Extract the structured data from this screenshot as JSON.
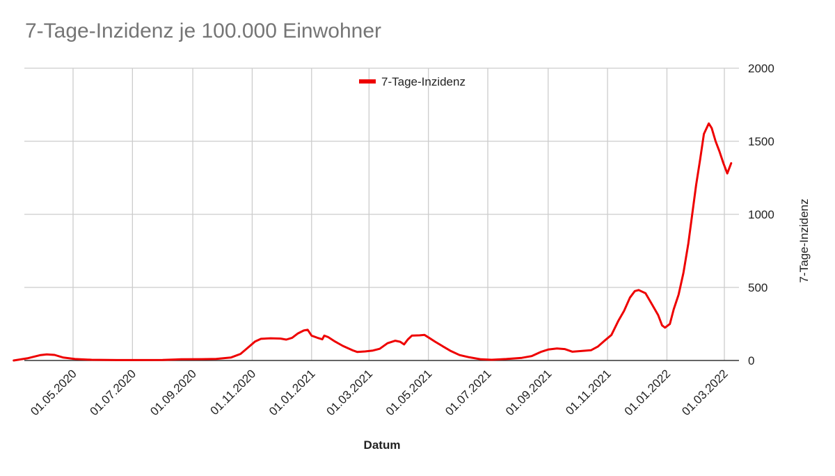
{
  "chart_data": {
    "type": "line",
    "title": "7-Tage-Inzidenz je 100.000 Einwohner",
    "xlabel": "Datum",
    "ylabel": "7-Tage-Inzidenz",
    "ylim": [
      0,
      2000
    ],
    "yticks": [
      "0",
      "500",
      "1000",
      "1500",
      "2000"
    ],
    "xlim": [
      "2020-03-01",
      "2022-03-31"
    ],
    "xticks": [
      {
        "date": "2020-05-01",
        "label": "01.05.2020"
      },
      {
        "date": "2020-07-01",
        "label": "01.07.2020"
      },
      {
        "date": "2020-09-01",
        "label": "01.09.2020"
      },
      {
        "date": "2020-11-01",
        "label": "01.11.2020"
      },
      {
        "date": "2021-01-01",
        "label": "01.01.2021"
      },
      {
        "date": "2021-03-01",
        "label": "01.03.2021"
      },
      {
        "date": "2021-05-01",
        "label": "01.05.2021"
      },
      {
        "date": "2021-07-01",
        "label": "01.07.2021"
      },
      {
        "date": "2021-09-01",
        "label": "01.09.2021"
      },
      {
        "date": "2021-11-01",
        "label": "01.11.2021"
      },
      {
        "date": "2022-01-01",
        "label": "01.01.2022"
      },
      {
        "date": "2022-03-01",
        "label": "01.03.2022"
      }
    ],
    "grid": true,
    "legend_position": "top",
    "series": [
      {
        "name": "7-Tage-Inzidenz",
        "color": "#ee0000",
        "points": [
          [
            "2020-03-01",
            0
          ],
          [
            "2020-03-15",
            15
          ],
          [
            "2020-03-28",
            36
          ],
          [
            "2020-04-04",
            42
          ],
          [
            "2020-04-12",
            38
          ],
          [
            "2020-04-21",
            20
          ],
          [
            "2020-05-03",
            10
          ],
          [
            "2020-05-20",
            5
          ],
          [
            "2020-06-15",
            3
          ],
          [
            "2020-07-01",
            3
          ],
          [
            "2020-08-01",
            4
          ],
          [
            "2020-08-20",
            8
          ],
          [
            "2020-09-10",
            9
          ],
          [
            "2020-09-25",
            11
          ],
          [
            "2020-10-10",
            20
          ],
          [
            "2020-10-20",
            45
          ],
          [
            "2020-10-28",
            90
          ],
          [
            "2020-11-04",
            130
          ],
          [
            "2020-11-10",
            148
          ],
          [
            "2020-11-20",
            152
          ],
          [
            "2020-11-30",
            150
          ],
          [
            "2020-12-06",
            143
          ],
          [
            "2020-12-12",
            155
          ],
          [
            "2020-12-18",
            185
          ],
          [
            "2020-12-24",
            205
          ],
          [
            "2020-12-28",
            210
          ],
          [
            "2021-01-01",
            170
          ],
          [
            "2021-01-07",
            155
          ],
          [
            "2021-01-12",
            145
          ],
          [
            "2021-01-14",
            170
          ],
          [
            "2021-01-18",
            160
          ],
          [
            "2021-01-25",
            130
          ],
          [
            "2021-02-02",
            100
          ],
          [
            "2021-02-12",
            70
          ],
          [
            "2021-02-17",
            58
          ],
          [
            "2021-02-25",
            62
          ],
          [
            "2021-03-05",
            68
          ],
          [
            "2021-03-12",
            80
          ],
          [
            "2021-03-20",
            118
          ],
          [
            "2021-03-28",
            135
          ],
          [
            "2021-04-02",
            128
          ],
          [
            "2021-04-06",
            110
          ],
          [
            "2021-04-10",
            145
          ],
          [
            "2021-04-14",
            170
          ],
          [
            "2021-04-22",
            172
          ],
          [
            "2021-04-27",
            175
          ],
          [
            "2021-05-01",
            158
          ],
          [
            "2021-05-08",
            128
          ],
          [
            "2021-05-15",
            100
          ],
          [
            "2021-05-24",
            65
          ],
          [
            "2021-06-02",
            37
          ],
          [
            "2021-06-12",
            22
          ],
          [
            "2021-06-24",
            8
          ],
          [
            "2021-07-05",
            5
          ],
          [
            "2021-07-20",
            10
          ],
          [
            "2021-08-05",
            18
          ],
          [
            "2021-08-15",
            30
          ],
          [
            "2021-08-25",
            60
          ],
          [
            "2021-09-01",
            75
          ],
          [
            "2021-09-10",
            82
          ],
          [
            "2021-09-18",
            78
          ],
          [
            "2021-09-26",
            60
          ],
          [
            "2021-10-05",
            65
          ],
          [
            "2021-10-15",
            70
          ],
          [
            "2021-10-22",
            95
          ],
          [
            "2021-10-28",
            130
          ],
          [
            "2021-11-05",
            175
          ],
          [
            "2021-11-12",
            270
          ],
          [
            "2021-11-18",
            340
          ],
          [
            "2021-11-24",
            430
          ],
          [
            "2021-11-29",
            475
          ],
          [
            "2021-12-03",
            482
          ],
          [
            "2021-12-10",
            460
          ],
          [
            "2021-12-17",
            380
          ],
          [
            "2021-12-23",
            310
          ],
          [
            "2021-12-27",
            240
          ],
          [
            "2021-12-30",
            225
          ],
          [
            "2022-01-04",
            250
          ],
          [
            "2022-01-08",
            350
          ],
          [
            "2022-01-13",
            450
          ],
          [
            "2022-01-18",
            600
          ],
          [
            "2022-01-23",
            800
          ],
          [
            "2022-01-27",
            1000
          ],
          [
            "2022-01-31",
            1200
          ],
          [
            "2022-02-04",
            1370
          ],
          [
            "2022-02-08",
            1550
          ],
          [
            "2022-02-13",
            1622
          ],
          [
            "2022-02-16",
            1590
          ],
          [
            "2022-02-20",
            1500
          ],
          [
            "2022-02-24",
            1430
          ],
          [
            "2022-02-28",
            1350
          ],
          [
            "2022-03-04",
            1280
          ],
          [
            "2022-03-08",
            1350
          ]
        ]
      }
    ]
  }
}
